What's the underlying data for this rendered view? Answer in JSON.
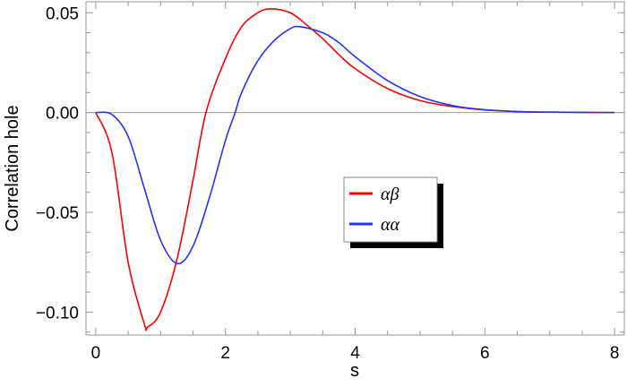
{
  "chart_data": {
    "type": "line",
    "title": "",
    "xlabel": "s",
    "ylabel": "Correlation hole",
    "xlim": [
      -0.15,
      8.15
    ],
    "ylim": [
      -0.1115,
      0.0555
    ],
    "x_ticks": [
      0,
      2,
      4,
      6,
      8
    ],
    "x_tick_labels": [
      "0",
      "2",
      "4",
      "6",
      "8"
    ],
    "y_ticks": [
      0.05,
      0.0,
      -0.05,
      -0.1
    ],
    "y_tick_labels": [
      "0.05",
      "0.00",
      "−0.05",
      "−0.10"
    ],
    "zero_line": true,
    "grid": false,
    "legend_position": "center-right",
    "series": [
      {
        "name": "αβ",
        "color": "#ff0000",
        "x": [
          0,
          0.25,
          0.5,
          0.75,
          0.8,
          1.0,
          1.25,
          1.5,
          1.7,
          2.0,
          2.25,
          2.5,
          2.7,
          3.0,
          3.25,
          3.5,
          3.75,
          4.0,
          4.5,
          5.0,
          5.5,
          6.0,
          6.5,
          7.0,
          7.5,
          8.0
        ],
        "y": [
          0,
          -0.02,
          -0.075,
          -0.106,
          -0.1075,
          -0.1,
          -0.074,
          -0.034,
          0,
          0.027,
          0.043,
          0.05,
          0.052,
          0.05,
          0.044,
          0.037,
          0.029,
          0.022,
          0.012,
          0.006,
          0.003,
          0.0013,
          0.0005,
          0.0002,
          0.0001,
          0
        ]
      },
      {
        "name": "αα",
        "color": "#2233ff",
        "x": [
          0,
          0.25,
          0.5,
          0.75,
          1.0,
          1.26,
          1.5,
          1.75,
          2.0,
          2.15,
          2.25,
          2.5,
          2.75,
          3.0,
          3.15,
          3.5,
          3.75,
          4.0,
          4.5,
          5.0,
          5.5,
          6.0,
          6.5,
          7.0,
          7.5,
          8.0
        ],
        "y": [
          0,
          -0.001,
          -0.012,
          -0.038,
          -0.064,
          -0.0757,
          -0.067,
          -0.043,
          -0.014,
          0,
          0.01,
          0.026,
          0.036,
          0.042,
          0.043,
          0.04,
          0.035,
          0.028,
          0.016,
          0.008,
          0.0035,
          0.0014,
          0.0005,
          0.0002,
          0.0001,
          0
        ]
      }
    ]
  }
}
